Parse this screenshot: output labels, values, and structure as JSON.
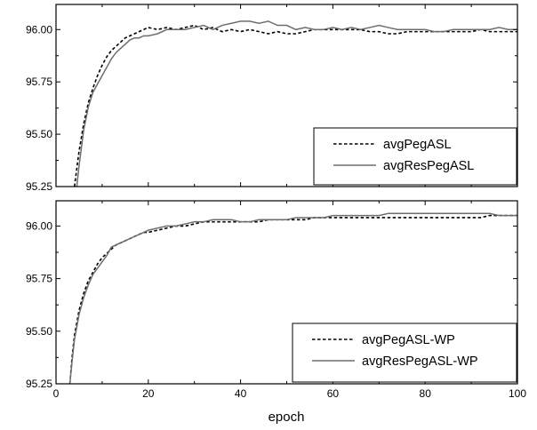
{
  "chart_data": [
    {
      "type": "line",
      "xlabel": "epoch",
      "ylabel": "",
      "xlim": [
        0,
        100
      ],
      "ylim": [
        95.25,
        96.12
      ],
      "x_ticks": [
        0,
        20,
        40,
        60,
        80,
        100
      ],
      "y_ticks": [
        95.25,
        95.5,
        95.75,
        96.0
      ],
      "y_tick_labels": [
        "95.25",
        "95.50",
        "95.75",
        "96.00"
      ],
      "legend_position": "center-right",
      "series": [
        {
          "name": "avgPegASL",
          "style": "dashed",
          "color": "#000000",
          "x": [
            4,
            5,
            6,
            7,
            8,
            9,
            10,
            11,
            12,
            13,
            14,
            15,
            16,
            17,
            18,
            19,
            20,
            22,
            24,
            26,
            28,
            30,
            32,
            34,
            36,
            38,
            40,
            42,
            44,
            46,
            48,
            50,
            52,
            54,
            56,
            58,
            60,
            62,
            64,
            66,
            68,
            70,
            72,
            74,
            76,
            78,
            80,
            82,
            84,
            86,
            88,
            90,
            92,
            94,
            96,
            98,
            100
          ],
          "y": [
            95.25,
            95.42,
            95.55,
            95.65,
            95.72,
            95.78,
            95.83,
            95.87,
            95.9,
            95.92,
            95.94,
            95.96,
            95.97,
            95.98,
            95.99,
            96.0,
            96.01,
            96.0,
            96.01,
            96.0,
            96.01,
            96.02,
            96.0,
            96.01,
            95.99,
            96.0,
            95.99,
            96.0,
            95.99,
            95.98,
            95.99,
            95.98,
            95.98,
            95.99,
            96.0,
            96.0,
            96.0,
            96.0,
            96.0,
            96.0,
            95.99,
            95.99,
            95.98,
            95.98,
            95.99,
            95.99,
            95.99,
            95.99,
            95.99,
            95.99,
            95.99,
            95.99,
            96.0,
            95.99,
            95.99,
            95.99,
            95.99
          ]
        },
        {
          "name": "avgResPegASL",
          "style": "solid",
          "color": "#6e6e6e",
          "x": [
            4.5,
            5,
            6,
            7,
            8,
            9,
            10,
            11,
            12,
            13,
            14,
            15,
            16,
            17,
            18,
            19,
            20,
            22,
            24,
            26,
            28,
            30,
            32,
            34,
            36,
            38,
            40,
            42,
            44,
            46,
            48,
            50,
            52,
            54,
            56,
            58,
            60,
            62,
            64,
            66,
            68,
            70,
            72,
            74,
            76,
            78,
            80,
            82,
            84,
            86,
            88,
            90,
            92,
            94,
            96,
            98,
            100
          ],
          "y": [
            95.25,
            95.35,
            95.52,
            95.63,
            95.7,
            95.74,
            95.78,
            95.82,
            95.86,
            95.89,
            95.91,
            95.93,
            95.95,
            95.96,
            95.96,
            95.97,
            95.97,
            95.98,
            96.0,
            96.0,
            96.0,
            96.01,
            96.02,
            96.0,
            96.02,
            96.03,
            96.04,
            96.04,
            96.03,
            96.04,
            96.02,
            96.02,
            96.0,
            96.01,
            96.0,
            96.0,
            96.01,
            96.0,
            96.01,
            96.0,
            96.01,
            96.02,
            96.01,
            96.0,
            96.0,
            96.0,
            96.0,
            95.99,
            95.99,
            96.0,
            96.0,
            96.0,
            96.0,
            96.0,
            96.01,
            96.0,
            96.0
          ]
        }
      ]
    },
    {
      "type": "line",
      "xlabel": "epoch",
      "ylabel": "",
      "xlim": [
        0,
        100
      ],
      "ylim": [
        95.25,
        96.12
      ],
      "x_ticks": [
        0,
        20,
        40,
        60,
        80,
        100
      ],
      "x_tick_labels": [
        "0",
        "20",
        "40",
        "60",
        "80",
        "100"
      ],
      "y_ticks": [
        95.25,
        95.5,
        95.75,
        96.0
      ],
      "y_tick_labels": [
        "95.25",
        "95.50",
        "95.75",
        "96.00"
      ],
      "legend_position": "bottom-right",
      "series": [
        {
          "name": "avgPegASL-WP",
          "style": "dashed",
          "color": "#000000",
          "x": [
            3,
            3.5,
            4,
            5,
            6,
            7,
            8,
            9,
            10,
            11,
            12,
            13,
            14,
            15,
            16,
            17,
            18,
            19,
            20,
            22,
            24,
            26,
            28,
            30,
            32,
            34,
            36,
            38,
            40,
            42,
            44,
            46,
            48,
            50,
            52,
            54,
            56,
            58,
            60,
            62,
            64,
            66,
            68,
            70,
            72,
            74,
            76,
            78,
            80,
            82,
            84,
            86,
            88,
            90,
            92,
            94,
            96,
            98,
            100
          ],
          "y": [
            95.25,
            95.38,
            95.48,
            95.6,
            95.68,
            95.74,
            95.78,
            95.82,
            95.85,
            95.87,
            95.89,
            95.91,
            95.92,
            95.93,
            95.94,
            95.95,
            95.96,
            95.97,
            95.97,
            95.98,
            95.99,
            96.0,
            96.0,
            96.01,
            96.02,
            96.02,
            96.02,
            96.02,
            96.02,
            96.02,
            96.02,
            96.03,
            96.03,
            96.03,
            96.03,
            96.03,
            96.04,
            96.04,
            96.04,
            96.04,
            96.04,
            96.04,
            96.04,
            96.04,
            96.04,
            96.04,
            96.04,
            96.04,
            96.04,
            96.04,
            96.04,
            96.04,
            96.04,
            96.04,
            96.04,
            96.05,
            96.05,
            96.05,
            96.05
          ]
        },
        {
          "name": "avgResPegASL-WP",
          "style": "solid",
          "color": "#6e6e6e",
          "x": [
            3,
            3.5,
            4,
            5,
            6,
            7,
            8,
            9,
            10,
            11,
            12,
            13,
            14,
            15,
            16,
            17,
            18,
            19,
            20,
            22,
            24,
            26,
            28,
            30,
            32,
            34,
            36,
            38,
            40,
            42,
            44,
            46,
            48,
            50,
            52,
            54,
            56,
            58,
            60,
            62,
            64,
            66,
            68,
            70,
            72,
            74,
            76,
            78,
            80,
            82,
            84,
            86,
            88,
            90,
            92,
            94,
            96,
            98,
            100
          ],
          "y": [
            95.25,
            95.36,
            95.46,
            95.58,
            95.66,
            95.72,
            95.77,
            95.8,
            95.83,
            95.86,
            95.9,
            95.91,
            95.92,
            95.93,
            95.94,
            95.95,
            95.96,
            95.97,
            95.98,
            95.99,
            96.0,
            96.0,
            96.01,
            96.02,
            96.02,
            96.03,
            96.03,
            96.03,
            96.02,
            96.02,
            96.03,
            96.03,
            96.03,
            96.03,
            96.04,
            96.04,
            96.04,
            96.04,
            96.05,
            96.05,
            96.05,
            96.05,
            96.05,
            96.05,
            96.06,
            96.06,
            96.06,
            96.06,
            96.06,
            96.06,
            96.06,
            96.06,
            96.06,
            96.06,
            96.06,
            96.06,
            96.05,
            96.05,
            96.05
          ]
        }
      ]
    }
  ]
}
